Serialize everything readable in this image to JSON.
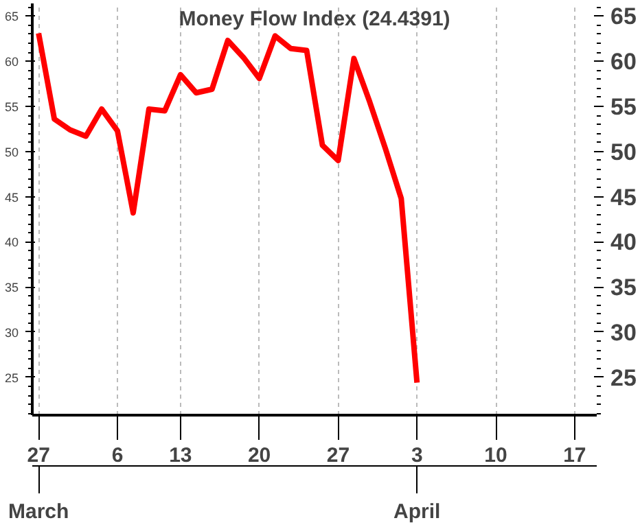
{
  "chart_data": {
    "type": "line",
    "title": "Money Flow Index (24.4391)",
    "categories": [
      "27",
      null,
      null,
      null,
      null,
      "6",
      null,
      null,
      null,
      "13",
      null,
      null,
      null,
      null,
      "20",
      null,
      null,
      null,
      null,
      "27",
      null,
      null,
      null,
      null,
      "3",
      null,
      null,
      null,
      null,
      "10",
      null,
      null,
      null,
      null,
      "17",
      null
    ],
    "series": [
      {
        "color": "#ff0000",
        "values": [
          63.1,
          53.6,
          52.4,
          51.7,
          54.7,
          52.3,
          43.2,
          54.7,
          54.5,
          58.5,
          56.5,
          56.9,
          62.3,
          60.4,
          58.1,
          62.8,
          61.4,
          61.2,
          50.7,
          49.0,
          60.3,
          55.5,
          50.3,
          44.8,
          24.4,
          null,
          null,
          null,
          null,
          null,
          null,
          null,
          null,
          null,
          null,
          null
        ]
      }
    ],
    "ylim": [
      20.8,
      66.4
    ],
    "yticks": [
      25,
      30,
      35,
      40,
      45,
      50,
      55,
      60,
      65
    ],
    "y2lim": [
      20.8,
      66.4
    ],
    "y2ticks": [
      25,
      30,
      35,
      40,
      45,
      50,
      55,
      60,
      65
    ],
    "annotations": [
      {
        "text": "March"
      },
      {
        "text": "April",
        "x": "3"
      }
    ],
    "grid": "x",
    "marker": "none",
    "line_style": "solid"
  }
}
